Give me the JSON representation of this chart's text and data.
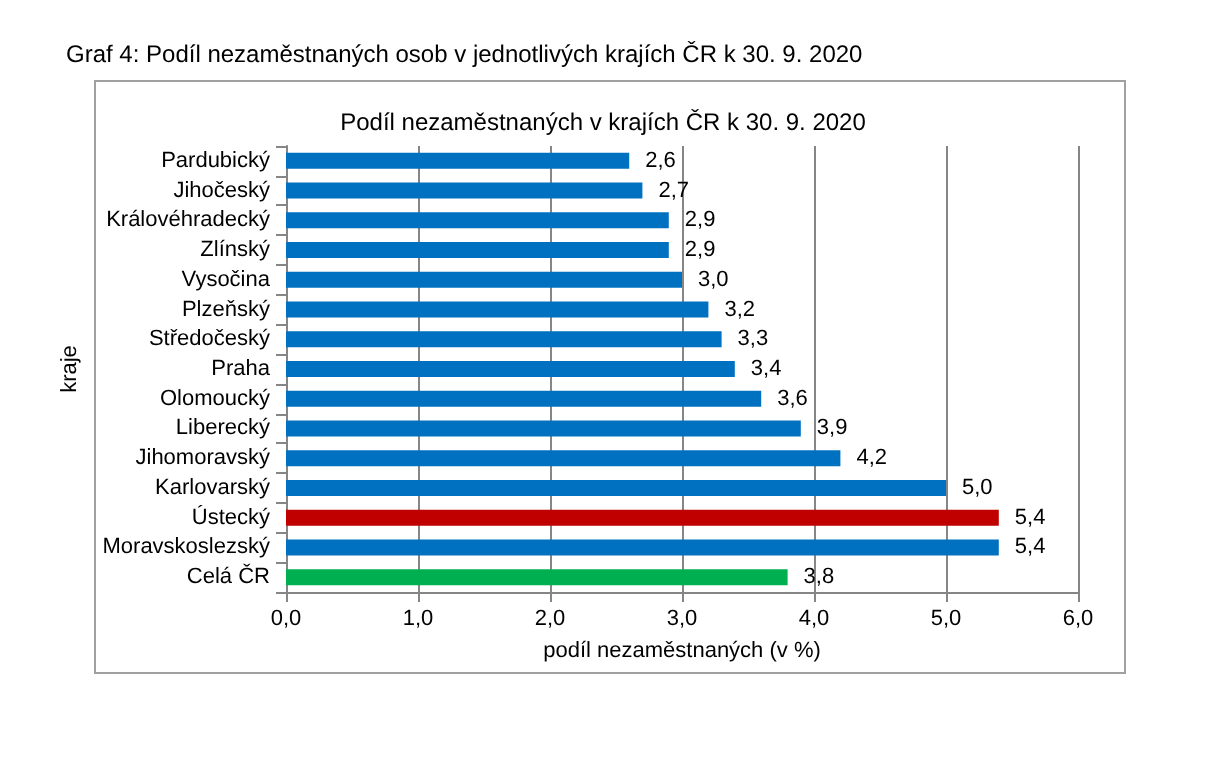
{
  "chart_data": {
    "type": "bar",
    "orientation": "horizontal",
    "title": "Graf 4: Podíl nezaměstnaných osob v jednotlivých krajích ČR k 30. 9. 2020",
    "subtitle": "Podíl nezaměstnaných v krajích ČR k 30. 9. 2020",
    "xlabel": "podíl nezaměstnaných (v %)",
    "ylabel": "kraje",
    "categories": [
      "Pardubický",
      "Jihočeský",
      "Královéhradecký",
      "Zlínský",
      "Vysočina",
      "Plzeňský",
      "Středočeský",
      "Praha",
      "Olomoucký",
      "Liberecký",
      "Jihomoravský",
      "Karlovarský",
      "Ústecký",
      "Moravskoslezský",
      "Celá ČR"
    ],
    "values": [
      2.6,
      2.7,
      2.9,
      2.9,
      3.0,
      3.2,
      3.3,
      3.4,
      3.6,
      3.9,
      4.2,
      5.0,
      5.4,
      5.4,
      3.8
    ],
    "value_labels": [
      "2,6",
      "2,7",
      "2,9",
      "2,9",
      "3,0",
      "3,2",
      "3,3",
      "3,4",
      "3,6",
      "3,9",
      "4,2",
      "5,0",
      "5,4",
      "5,4",
      "3,8"
    ],
    "colors": [
      "#0070c0",
      "#0070c0",
      "#0070c0",
      "#0070c0",
      "#0070c0",
      "#0070c0",
      "#0070c0",
      "#0070c0",
      "#0070c0",
      "#0070c0",
      "#0070c0",
      "#0070c0",
      "#c00000",
      "#0070c0",
      "#00b050"
    ],
    "xlim": [
      0,
      6
    ],
    "xticks": [
      {
        "value": 0,
        "label": "0,0"
      },
      {
        "value": 1,
        "label": "1,0"
      },
      {
        "value": 2,
        "label": "2,0"
      },
      {
        "value": 3,
        "label": "3,0"
      },
      {
        "value": 4,
        "label": "4,0"
      },
      {
        "value": 5,
        "label": "5,0"
      },
      {
        "value": 6,
        "label": "6,0"
      }
    ],
    "grid": "x"
  }
}
